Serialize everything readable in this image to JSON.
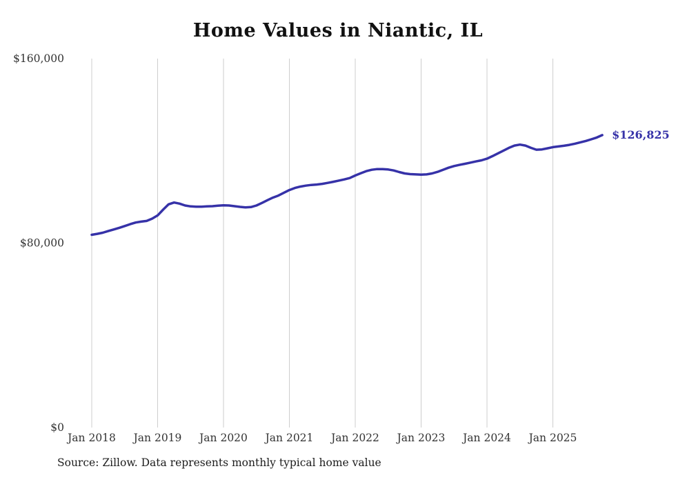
{
  "page": {
    "background": "#ffffff"
  },
  "chart_data": {
    "type": "line",
    "title": "Home Values in Niantic, IL",
    "series_name": "Monthly typical home value",
    "xlabel": "",
    "ylabel": "",
    "ylim": [
      0,
      160000
    ],
    "grid": "vertical-only",
    "legend": "none",
    "line_color": "#3632a8",
    "grid_color": "#cdcdcd",
    "axis_text_color": "#333333",
    "end_label": "$126,825",
    "end_value": 126825,
    "source_note": "Source: Zillow. Data represents monthly typical home value",
    "y_ticks": [
      {
        "value": 0,
        "label": "$0"
      },
      {
        "value": 80000,
        "label": "$80,000"
      },
      {
        "value": 160000,
        "label": "$160,000"
      }
    ],
    "x_ticks": [
      {
        "month_index": 0,
        "label": "Jan 2018"
      },
      {
        "month_index": 12,
        "label": "Jan 2019"
      },
      {
        "month_index": 24,
        "label": "Jan 2020"
      },
      {
        "month_index": 36,
        "label": "Jan 2021"
      },
      {
        "month_index": 48,
        "label": "Jan 2022"
      },
      {
        "month_index": 60,
        "label": "Jan 2023"
      },
      {
        "month_index": 72,
        "label": "Jan 2024"
      },
      {
        "month_index": 84,
        "label": "Jan 2025"
      }
    ],
    "x": [
      "2018-01",
      "2018-02",
      "2018-03",
      "2018-04",
      "2018-05",
      "2018-06",
      "2018-07",
      "2018-08",
      "2018-09",
      "2018-10",
      "2018-11",
      "2018-12",
      "2019-01",
      "2019-02",
      "2019-03",
      "2019-04",
      "2019-05",
      "2019-06",
      "2019-07",
      "2019-08",
      "2019-09",
      "2019-10",
      "2019-11",
      "2019-12",
      "2020-01",
      "2020-02",
      "2020-03",
      "2020-04",
      "2020-05",
      "2020-06",
      "2020-07",
      "2020-08",
      "2020-09",
      "2020-10",
      "2020-11",
      "2020-12",
      "2021-01",
      "2021-02",
      "2021-03",
      "2021-04",
      "2021-05",
      "2021-06",
      "2021-07",
      "2021-08",
      "2021-09",
      "2021-10",
      "2021-11",
      "2021-12",
      "2022-01",
      "2022-02",
      "2022-03",
      "2022-04",
      "2022-05",
      "2022-06",
      "2022-07",
      "2022-08",
      "2022-09",
      "2022-10",
      "2022-11",
      "2022-12",
      "2023-01",
      "2023-02",
      "2023-03",
      "2023-04",
      "2023-05",
      "2023-06",
      "2023-07",
      "2023-08",
      "2023-09",
      "2023-10",
      "2023-11",
      "2023-12",
      "2024-01",
      "2024-02",
      "2024-03",
      "2024-04",
      "2024-05",
      "2024-06",
      "2024-07",
      "2024-08",
      "2024-09",
      "2024-10",
      "2024-11",
      "2024-12",
      "2025-01",
      "2025-02",
      "2025-03",
      "2025-04",
      "2025-05",
      "2025-06",
      "2025-07",
      "2025-08",
      "2025-09",
      "2025-10"
    ],
    "values": [
      83600,
      84000,
      84500,
      85200,
      85900,
      86600,
      87400,
      88200,
      88900,
      89300,
      89600,
      90600,
      92000,
      94500,
      96800,
      97600,
      97100,
      96300,
      95900,
      95800,
      95800,
      95900,
      96000,
      96200,
      96400,
      96300,
      96000,
      95700,
      95500,
      95600,
      96300,
      97400,
      98600,
      99700,
      100600,
      101800,
      103000,
      103900,
      104500,
      104900,
      105200,
      105400,
      105700,
      106100,
      106600,
      107100,
      107600,
      108200,
      109300,
      110300,
      111200,
      111800,
      112100,
      112100,
      111900,
      111500,
      110800,
      110200,
      109900,
      109800,
      109700,
      109800,
      110200,
      110900,
      111800,
      112700,
      113400,
      113900,
      114400,
      114900,
      115400,
      115900,
      116600,
      117700,
      118900,
      120100,
      121300,
      122300,
      122700,
      122300,
      121300,
      120500,
      120600,
      121100,
      121600,
      121900,
      122200,
      122600,
      123100,
      123700,
      124300,
      125000,
      125800,
      126825
    ]
  }
}
